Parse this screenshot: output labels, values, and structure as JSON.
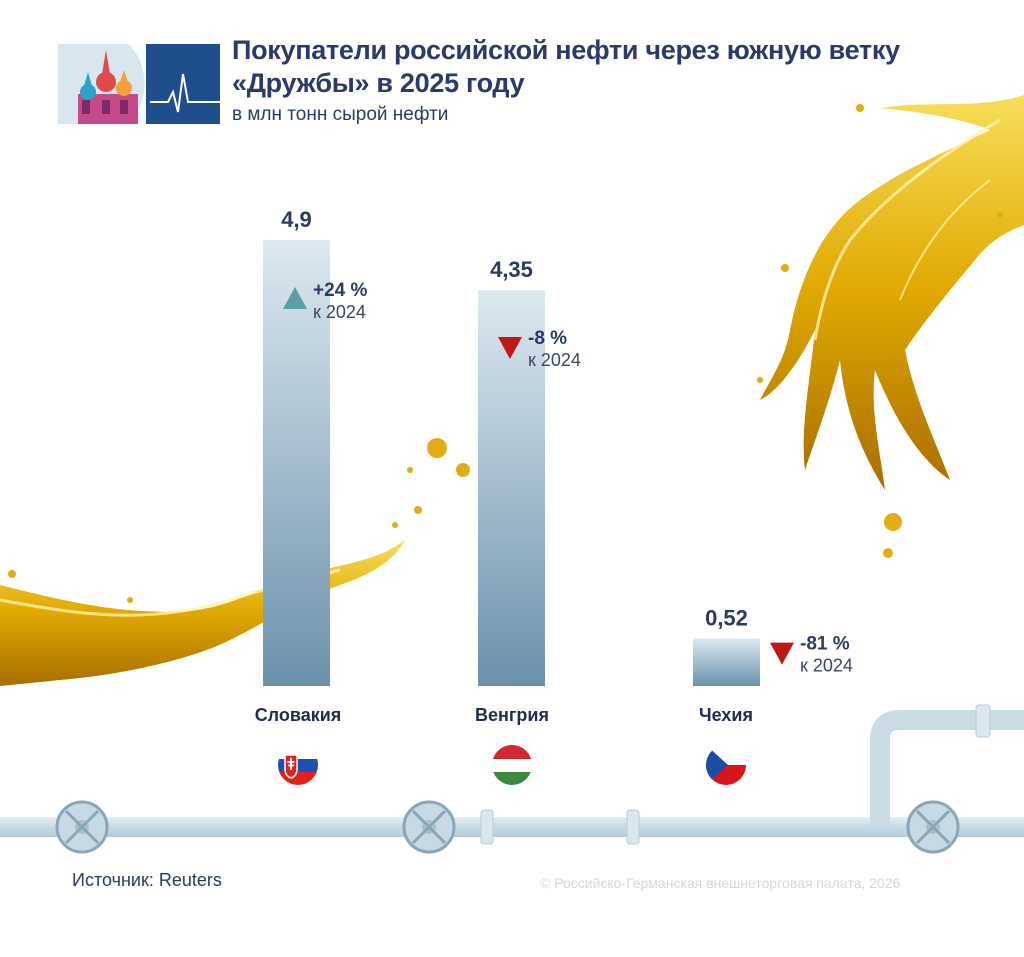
{
  "header": {
    "title_line1": "Покупатели российской нефти через южную ветку",
    "title_line2": "«Дружбы» в 2025 году",
    "subtitle": "в млн тонн сырой нефти"
  },
  "chart_data": {
    "type": "bar",
    "categories": [
      "Словакия",
      "Венгрия",
      "Чехия"
    ],
    "values": [
      4.9,
      4.35,
      0.52
    ],
    "value_labels": [
      "4,9",
      "4,35",
      "0,52"
    ],
    "changes": [
      {
        "value": "+24 %",
        "direction": "up",
        "note": "к 2024"
      },
      {
        "value": "-8 %",
        "direction": "down",
        "note": "к 2024"
      },
      {
        "value": "-81 %",
        "direction": "down",
        "note": "к 2024"
      }
    ],
    "ylim": [
      0,
      4.9
    ],
    "grid": false,
    "legend": "none"
  },
  "flags": [
    "slovakia-flag",
    "hungary-flag",
    "czechia-flag"
  ],
  "colors": {
    "bar_top": "#d9e8ef",
    "bar_bottom": "#6f93ad",
    "up_arrow": "#5b9ea3",
    "down_arrow": "#c01818",
    "title": "#2b3a6b",
    "oil": "#e6b800",
    "pipe": "#cfe0e8"
  },
  "footer": {
    "source": "Источник: Reuters",
    "copyright": "© Российско-Германская внешнеторговая палата, 2026"
  }
}
